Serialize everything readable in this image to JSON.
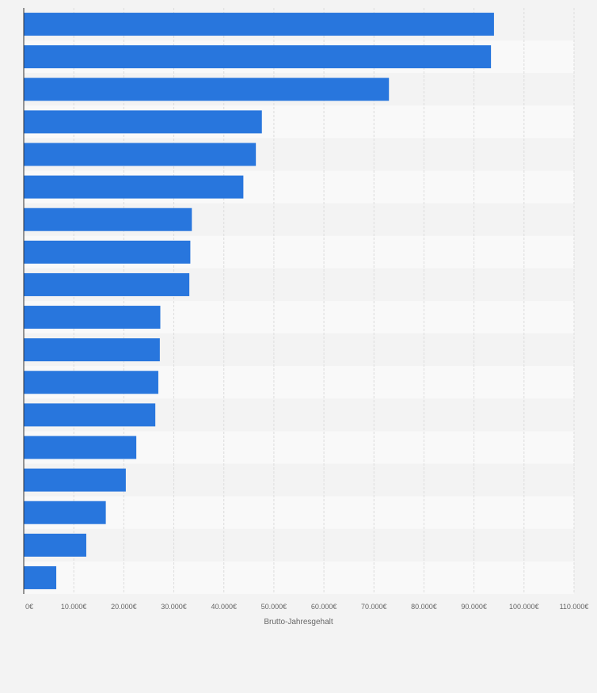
{
  "chart_data": {
    "type": "bar",
    "orientation": "horizontal",
    "title": "",
    "xlabel": "Brutto-Jahresgehalt",
    "ylabel": "",
    "categories": [
      "",
      "",
      "",
      "",
      "",
      "",
      "",
      "",
      "",
      "",
      "",
      "",
      "",
      "",
      "",
      "",
      "",
      ""
    ],
    "values": [
      94000,
      93400,
      73000,
      47600,
      46400,
      43900,
      33600,
      33300,
      33100,
      27300,
      27200,
      26900,
      26300,
      22500,
      20400,
      16400,
      12500,
      6500
    ],
    "xlim": [
      0,
      110000
    ],
    "xticks": [
      0,
      10000,
      20000,
      30000,
      40000,
      50000,
      60000,
      70000,
      80000,
      90000,
      100000,
      110000
    ],
    "xtick_labels": [
      "0€",
      "10.000€",
      "20.000€",
      "30.000€",
      "40.000€",
      "50.000€",
      "60.000€",
      "70.000€",
      "80.000€",
      "90.000€",
      "100.000€",
      "110.000€"
    ],
    "grid": true,
    "legend": "none",
    "colors": {
      "bar": "#2876dd",
      "background": "#f3f3f3",
      "band_light": "#f9f9f9",
      "band_dark": "#f3f3f3",
      "grid": "#dcdcdc",
      "axis": "#333333",
      "text": "#666666"
    }
  }
}
